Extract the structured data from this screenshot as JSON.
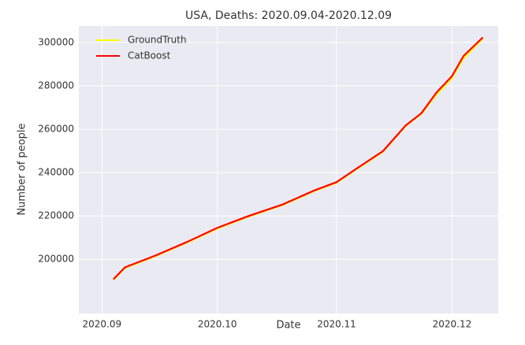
{
  "chart_data": {
    "type": "line",
    "title": "USA, Deaths: 2020.09.04-2020.12.09",
    "xlabel": "Date",
    "ylabel": "Number of people",
    "x": [
      "2020.09.04",
      "2020.09.07",
      "2020.09.15",
      "2020.09.23",
      "2020.10.01",
      "2020.10.09",
      "2020.10.18",
      "2020.10.26",
      "2020.11.01",
      "2020.11.07",
      "2020.11.13",
      "2020.11.19",
      "2020.11.23",
      "2020.11.27",
      "2020.12.01",
      "2020.12.04",
      "2020.12.09"
    ],
    "series": [
      {
        "name": "GroundTruth",
        "color": "#ffff00",
        "values": [
          190500,
          196000,
          201500,
          207600,
          214200,
          219600,
          225000,
          231300,
          235300,
          242500,
          249500,
          261500,
          267000,
          276000,
          283600,
          292700,
          301800
        ]
      },
      {
        "name": "CatBoost",
        "color": "#ff0000",
        "values": [
          190800,
          196300,
          201800,
          207900,
          214500,
          219900,
          225300,
          231600,
          235600,
          242800,
          249800,
          261800,
          267300,
          277000,
          284500,
          293800,
          302300
        ]
      }
    ],
    "xlim": [
      "2020.08.26",
      "2020.12.13"
    ],
    "xticks": [
      {
        "value": "2020.09.01",
        "label": "2020.09"
      },
      {
        "value": "2020.10.01",
        "label": "2020.10"
      },
      {
        "value": "2020.11.01",
        "label": "2020.11"
      },
      {
        "value": "2020.12.01",
        "label": "2020.12"
      }
    ],
    "ylim": [
      175000,
      307600
    ],
    "yticks": [
      200000,
      220000,
      240000,
      260000,
      280000,
      300000
    ],
    "grid": true,
    "legend": "upper-left"
  }
}
